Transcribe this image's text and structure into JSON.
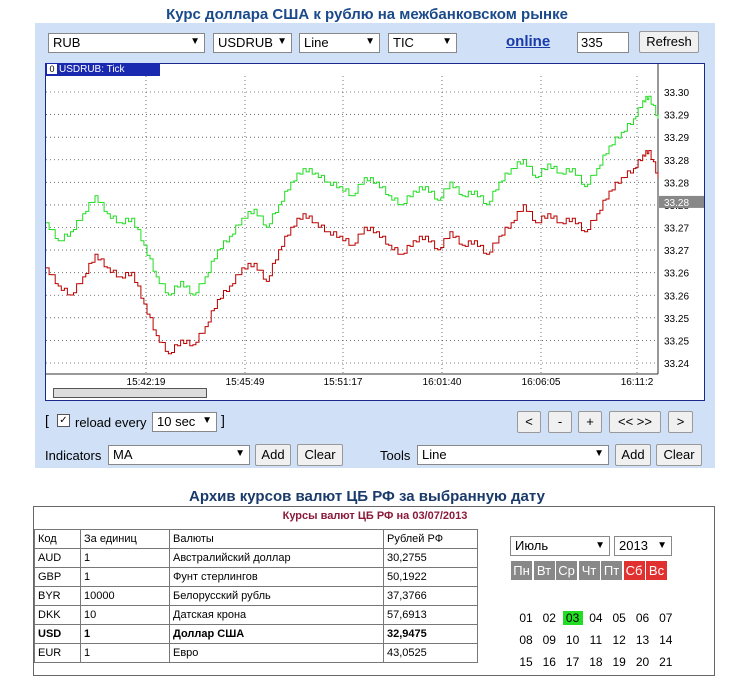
{
  "page": {
    "chart_title": "Курс доллара США к рублю на межбанковском рынке",
    "archive_title": "Архив курсов валют ЦБ РФ за выбранную дату"
  },
  "controls": {
    "currency": "RUB",
    "pair": "USDRUB",
    "chart_type": "Line",
    "period": "TIC",
    "online_label": "online",
    "points_value": "335",
    "refresh_label": "Refresh"
  },
  "chart_tab": {
    "index": "0",
    "label": "USDRUB: Tick"
  },
  "nav": {
    "reload_prefix": "[",
    "reload_label": "reload every",
    "reload_value": "10 sec",
    "reload_suffix": "]",
    "btn_back": "<",
    "btn_minus": "-",
    "btn_plus": "+",
    "btn_zoom": "<< >>",
    "btn_forward": ">"
  },
  "indicators": {
    "label": "Indicators",
    "value": "MA",
    "add": "Add",
    "clear": "Clear"
  },
  "tools": {
    "label": "Tools",
    "value": "Line",
    "add": "Add",
    "clear": "Clear"
  },
  "colors": {
    "ask": "#22dd22",
    "bid": "#bb0000",
    "panel": "#cfe0f7"
  },
  "chart_data": {
    "type": "line",
    "title": "USDRUB: Tick",
    "x_ticks": [
      "15:42:19",
      "15:45:49",
      "15:51:17",
      "16:01:40",
      "16:06:05",
      "16:11:2"
    ],
    "y_ticks": [
      "33.30",
      "33.29",
      "33.29",
      "33.28",
      "33.28",
      "33.28",
      "33.27",
      "33.27",
      "33.26",
      "33.26",
      "33.25",
      "33.25",
      "33.24"
    ],
    "y_range": [
      33.2385,
      33.3045
    ],
    "current_value": "33.28",
    "series": [
      {
        "color": "#22dd22",
        "points": [
          [
            0,
            33.272
          ],
          [
            0.02,
            33.268
          ],
          [
            0.04,
            33.27
          ],
          [
            0.06,
            33.274
          ],
          [
            0.08,
            33.278
          ],
          [
            0.1,
            33.274
          ],
          [
            0.12,
            33.272
          ],
          [
            0.14,
            33.273
          ],
          [
            0.16,
            33.267
          ],
          [
            0.18,
            33.26
          ],
          [
            0.2,
            33.256
          ],
          [
            0.22,
            33.259
          ],
          [
            0.24,
            33.256
          ],
          [
            0.26,
            33.26
          ],
          [
            0.28,
            33.266
          ],
          [
            0.3,
            33.269
          ],
          [
            0.32,
            33.273
          ],
          [
            0.34,
            33.275
          ],
          [
            0.36,
            33.271
          ],
          [
            0.38,
            33.276
          ],
          [
            0.4,
            33.281
          ],
          [
            0.42,
            33.284
          ],
          [
            0.44,
            33.283
          ],
          [
            0.46,
            33.281
          ],
          [
            0.48,
            33.28
          ],
          [
            0.5,
            33.278
          ],
          [
            0.52,
            33.282
          ],
          [
            0.54,
            33.281
          ],
          [
            0.56,
            33.278
          ],
          [
            0.58,
            33.276
          ],
          [
            0.6,
            33.279
          ],
          [
            0.62,
            33.28
          ],
          [
            0.64,
            33.277
          ],
          [
            0.66,
            33.281
          ],
          [
            0.68,
            33.278
          ],
          [
            0.7,
            33.279
          ],
          [
            0.72,
            33.276
          ],
          [
            0.74,
            33.281
          ],
          [
            0.76,
            33.284
          ],
          [
            0.78,
            33.286
          ],
          [
            0.8,
            33.282
          ],
          [
            0.82,
            33.285
          ],
          [
            0.84,
            33.283
          ],
          [
            0.86,
            33.284
          ],
          [
            0.88,
            33.28
          ],
          [
            0.9,
            33.284
          ],
          [
            0.92,
            33.289
          ],
          [
            0.94,
            33.292
          ],
          [
            0.96,
            33.295
          ],
          [
            0.975,
            33.299
          ],
          [
            0.985,
            33.3
          ],
          [
            1.0,
            33.295
          ]
        ]
      },
      {
        "color": "#bb0000",
        "points": [
          [
            0,
            33.262
          ],
          [
            0.02,
            33.258
          ],
          [
            0.04,
            33.256
          ],
          [
            0.06,
            33.26
          ],
          [
            0.08,
            33.265
          ],
          [
            0.1,
            33.262
          ],
          [
            0.12,
            33.26
          ],
          [
            0.14,
            33.261
          ],
          [
            0.16,
            33.254
          ],
          [
            0.18,
            33.247
          ],
          [
            0.2,
            33.243
          ],
          [
            0.22,
            33.246
          ],
          [
            0.24,
            33.245
          ],
          [
            0.26,
            33.249
          ],
          [
            0.28,
            33.255
          ],
          [
            0.3,
            33.258
          ],
          [
            0.32,
            33.262
          ],
          [
            0.34,
            33.263
          ],
          [
            0.36,
            33.259
          ],
          [
            0.38,
            33.266
          ],
          [
            0.4,
            33.271
          ],
          [
            0.42,
            33.274
          ],
          [
            0.44,
            33.272
          ],
          [
            0.46,
            33.27
          ],
          [
            0.48,
            33.269
          ],
          [
            0.5,
            33.267
          ],
          [
            0.52,
            33.271
          ],
          [
            0.54,
            33.27
          ],
          [
            0.56,
            33.267
          ],
          [
            0.58,
            33.265
          ],
          [
            0.6,
            33.268
          ],
          [
            0.62,
            33.269
          ],
          [
            0.64,
            33.266
          ],
          [
            0.66,
            33.27
          ],
          [
            0.68,
            33.267
          ],
          [
            0.7,
            33.268
          ],
          [
            0.72,
            33.265
          ],
          [
            0.74,
            33.269
          ],
          [
            0.76,
            33.272
          ],
          [
            0.78,
            33.276
          ],
          [
            0.8,
            33.272
          ],
          [
            0.82,
            33.274
          ],
          [
            0.84,
            33.272
          ],
          [
            0.86,
            33.273
          ],
          [
            0.88,
            33.27
          ],
          [
            0.9,
            33.274
          ],
          [
            0.92,
            33.279
          ],
          [
            0.94,
            33.282
          ],
          [
            0.96,
            33.284
          ],
          [
            0.975,
            33.287
          ],
          [
            0.985,
            33.288
          ],
          [
            1.0,
            33.282
          ]
        ]
      }
    ]
  },
  "archive": {
    "subtitle": "Курсы валют ЦБ РФ на 03/07/2013",
    "columns": [
      "Код",
      "За единиц",
      "Валюты",
      "Рублей РФ"
    ],
    "rows": [
      [
        "AUD",
        "1",
        "Австралийский доллар",
        "30,2755"
      ],
      [
        "GBP",
        "1",
        "Фунт стерлингов",
        "50,1922"
      ],
      [
        "BYR",
        "10000",
        "Белорусский рубль",
        "37,3766"
      ],
      [
        "DKK",
        "10",
        "Датская крона",
        "57,6913"
      ],
      [
        "USD",
        "1",
        "Доллар США",
        "32,9475"
      ],
      [
        "EUR",
        "1",
        "Евро",
        "43,0525"
      ]
    ]
  },
  "calendar": {
    "month": "Июль",
    "year": "2013",
    "weekdays": [
      "Пн",
      "Вт",
      "Ср",
      "Чт",
      "Пт",
      "Сб",
      "Вс"
    ],
    "weeks": [
      [
        "01",
        "02",
        "03",
        "04",
        "05",
        "06",
        "07"
      ],
      [
        "08",
        "09",
        "10",
        "11",
        "12",
        "13",
        "14"
      ],
      [
        "15",
        "16",
        "17",
        "18",
        "19",
        "20",
        "21"
      ]
    ],
    "selected": "03"
  }
}
